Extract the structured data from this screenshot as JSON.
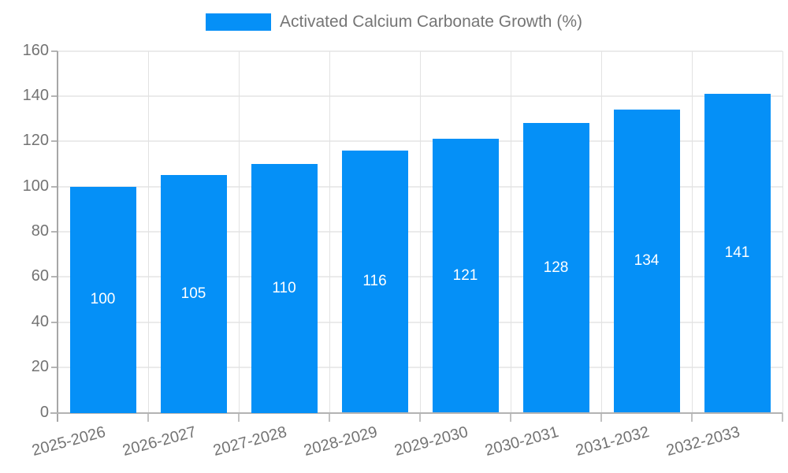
{
  "chart_data": {
    "type": "bar",
    "title": "",
    "legend": "Activated Calcium Carbonate Growth (%)",
    "legend_position": "top",
    "categories": [
      "2025-2026",
      "2026-2027",
      "2027-2028",
      "2028-2029",
      "2029-2030",
      "2030-2031",
      "2031-2032",
      "2032-2033"
    ],
    "series": [
      {
        "name": "Activated Calcium Carbonate Growth (%)",
        "values": [
          100,
          105,
          110,
          116,
          121,
          128,
          134,
          141
        ]
      }
    ],
    "value_labels": [
      "100",
      "105",
      "110",
      "116",
      "121",
      "128",
      "134",
      "141"
    ],
    "xlabel": "",
    "ylabel": "",
    "ylim": [
      0,
      160
    ],
    "yticks": [
      0,
      20,
      40,
      60,
      80,
      100,
      120,
      140,
      160
    ],
    "grid": true,
    "colors": {
      "bar": "#0590f7",
      "value_label_text": "#ffffff",
      "axis_text": "#737373",
      "legend_text": "#757575",
      "gridline": "#ebebeb",
      "axis_line": "#a6a6a6",
      "background": "#ffffff"
    }
  }
}
